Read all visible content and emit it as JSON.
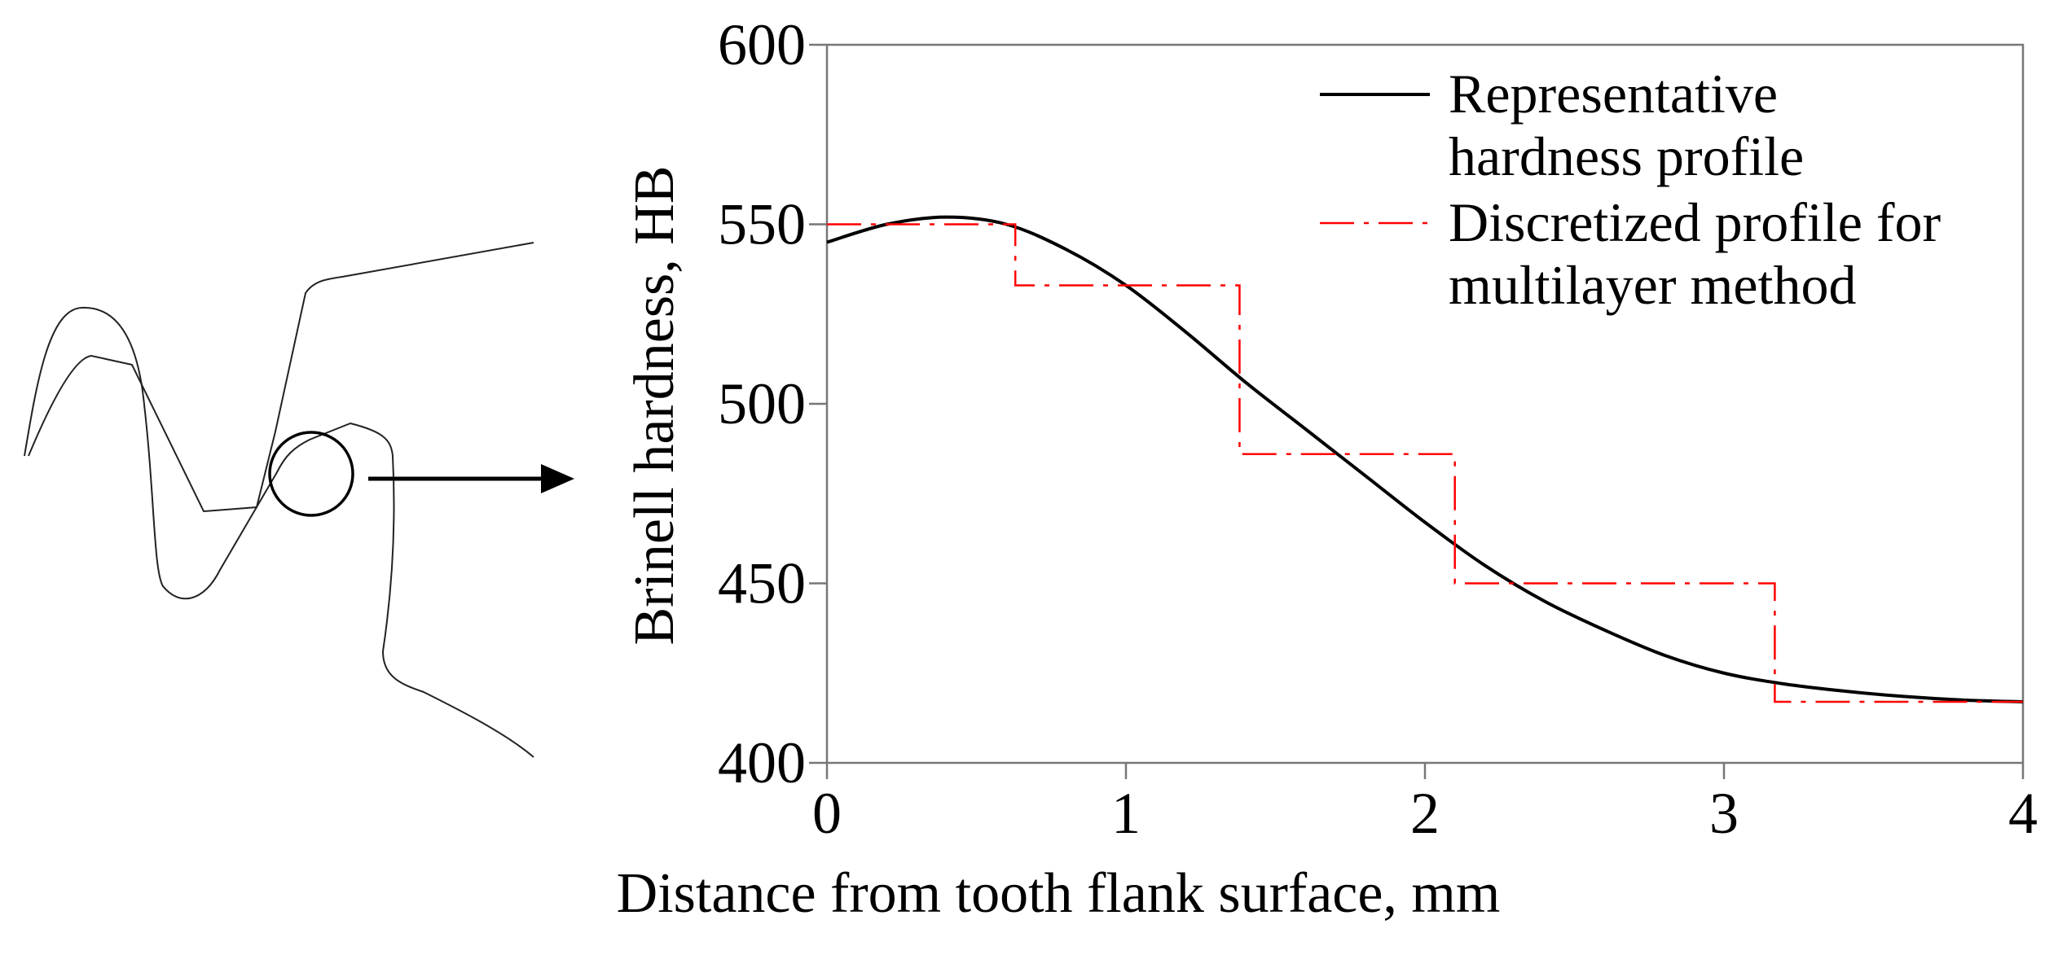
{
  "chart_data": {
    "type": "line",
    "title": "",
    "xlabel": "Distance from tooth flank surface, mm",
    "ylabel": "Brinell hardness, HB",
    "xlim": [
      0,
      4
    ],
    "ylim": [
      400,
      600
    ],
    "xticks": [
      "0",
      "1",
      "2",
      "3",
      "4"
    ],
    "yticks": [
      "400",
      "450",
      "500",
      "550",
      "600"
    ],
    "grid": false,
    "legend_position": "top-right",
    "series": [
      {
        "name": "Representative hardness profile",
        "legend_lines": [
          "Representative",
          "hardness profile"
        ],
        "style": "solid",
        "color": "#000000",
        "x": [
          0,
          0.2,
          0.4,
          0.6,
          0.8,
          1.0,
          1.2,
          1.4,
          1.6,
          1.8,
          2.0,
          2.2,
          2.4,
          2.6,
          2.8,
          3.0,
          3.2,
          3.4,
          3.6,
          3.8,
          4.0
        ],
        "y": [
          545,
          550,
          552,
          550,
          543,
          533,
          520,
          506,
          493,
          480,
          467,
          455,
          445,
          437,
          430,
          425,
          422,
          420,
          418.5,
          417.5,
          417
        ]
      },
      {
        "name": "Discretized profile for multilayer method",
        "legend_lines": [
          "Discretized profile for",
          "multilayer method"
        ],
        "style": "dash-dot",
        "color": "#ff0000",
        "x": [
          0,
          0.63,
          0.63,
          1.38,
          1.38,
          2.1,
          2.1,
          3.17,
          3.17,
          4.0
        ],
        "y": [
          550,
          550,
          533,
          533,
          486,
          486,
          450,
          450,
          417,
          417
        ]
      }
    ]
  },
  "figure": {
    "inset": "tooth-profile-sketch-with-zoom-circle-and-arrow"
  }
}
